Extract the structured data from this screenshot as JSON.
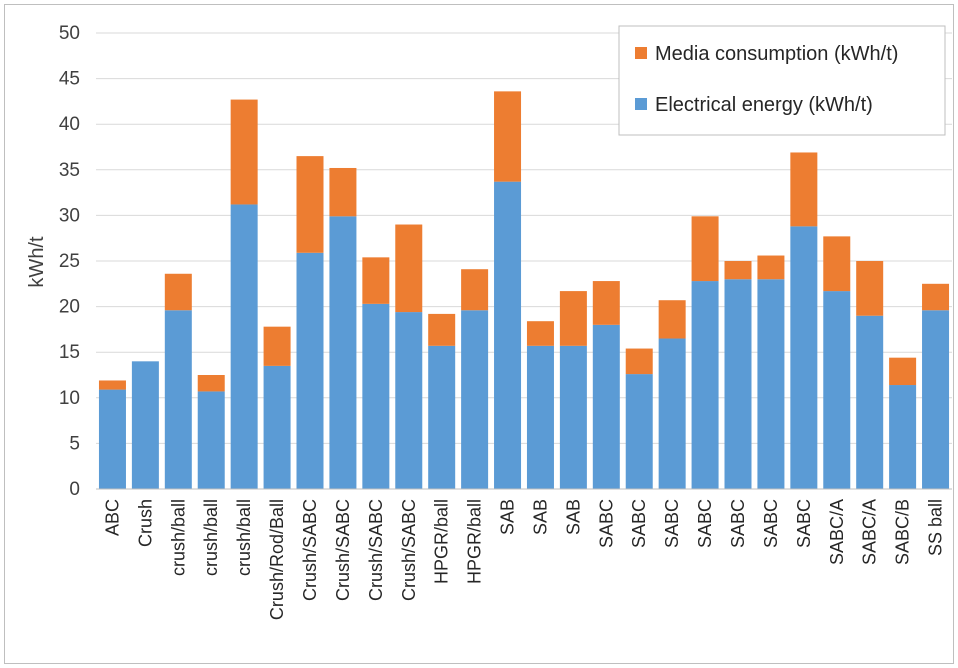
{
  "chart_data": {
    "type": "bar",
    "stacked": true,
    "ylabel": "kWh/t",
    "ylim": [
      0,
      50
    ],
    "yticks": [
      0,
      5,
      10,
      15,
      20,
      25,
      30,
      35,
      40,
      45,
      50
    ],
    "grid": true,
    "legend_position": "top-right",
    "categories": [
      "ABC",
      "Crush",
      "crush/ball",
      "crush/ball",
      "crush/ball",
      "Crush/Rod/Ball",
      "Crush/SABC",
      "Crush/SABC",
      "Crush/SABC",
      "Crush/SABC",
      "HPGR/ball",
      "HPGR/ball",
      "SAB",
      "SAB",
      "SAB",
      "SABC",
      "SABC",
      "SABC",
      "SABC",
      "SABC",
      "SABC",
      "SABC",
      "SABC/A",
      "SABC/A",
      "SABC/B",
      "SS ball"
    ],
    "series": [
      {
        "name": "Electrical energy (kWh/t)",
        "color": "#5b9bd5",
        "values": [
          10.9,
          14.0,
          19.6,
          10.7,
          31.2,
          13.5,
          25.9,
          29.9,
          20.3,
          19.4,
          15.7,
          19.6,
          33.7,
          15.7,
          15.7,
          18.0,
          12.6,
          16.5,
          22.8,
          23.0,
          23.0,
          28.8,
          21.7,
          19.0,
          11.4,
          19.6
        ]
      },
      {
        "name": "Media consumption (kWh/t)",
        "color": "#ed7d31",
        "values": [
          1.0,
          0.0,
          4.0,
          1.8,
          11.5,
          4.3,
          10.6,
          5.3,
          5.1,
          9.6,
          3.5,
          4.5,
          9.9,
          2.7,
          6.0,
          4.8,
          2.8,
          4.2,
          7.1,
          2.0,
          2.6,
          8.1,
          6.0,
          6.0,
          3.0,
          2.9
        ]
      }
    ],
    "legend_order": [
      "Media consumption (kWh/t)",
      "Electrical energy (kWh/t)"
    ]
  }
}
